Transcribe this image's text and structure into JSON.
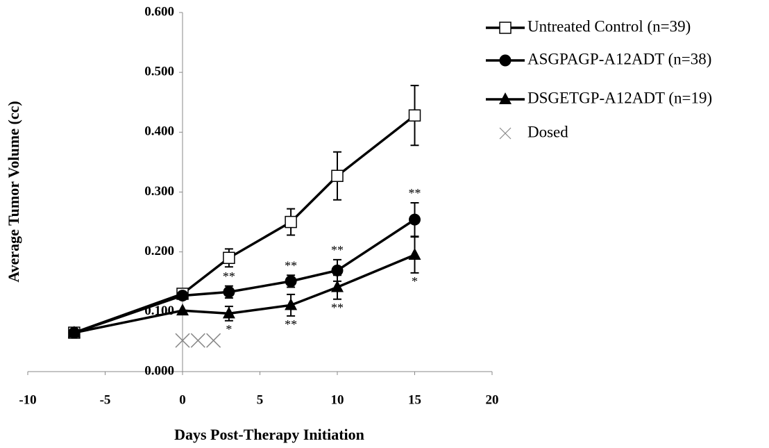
{
  "chart_data": {
    "type": "line",
    "xlabel": "Days Post-Therapy Initiation",
    "ylabel": "Average Tumor Volume (cc)",
    "xlim": [
      -10,
      20
    ],
    "xticks": [
      -10,
      -5,
      0,
      5,
      10,
      15,
      20
    ],
    "ylim": [
      0,
      0.6
    ],
    "yticks": [
      {
        "value": 0,
        "label": "0.000"
      },
      {
        "value": 0.1,
        "label": "0.100"
      },
      {
        "value": 0.2,
        "label": "0.200"
      },
      {
        "value": 0.3,
        "label": "0.300"
      },
      {
        "value": 0.4,
        "label": "0.400"
      },
      {
        "value": 0.5,
        "label": "0.500"
      },
      {
        "value": 0.6,
        "label": "0.600"
      }
    ],
    "series": [
      {
        "name": "Untreated Control (n=39)",
        "color": "#000000",
        "marker": "square-open",
        "x": [
          -7,
          0,
          3,
          7,
          10,
          15
        ],
        "values": [
          0.065,
          0.13,
          0.19,
          0.25,
          0.327,
          0.428
        ],
        "errors": [
          null,
          null,
          0.015,
          0.022,
          0.04,
          0.05
        ],
        "annotations": [
          null,
          null,
          null,
          null,
          null,
          null
        ]
      },
      {
        "name": "ASGPAGP-A12ADT (n=38)",
        "color": "#000000",
        "marker": "circle",
        "x": [
          -7,
          0,
          3,
          7,
          10,
          15
        ],
        "values": [
          0.065,
          0.127,
          0.133,
          0.151,
          0.169,
          0.254
        ],
        "errors": [
          null,
          null,
          0.01,
          0.01,
          0.018,
          0.028
        ],
        "annotations": [
          null,
          null,
          "**",
          "**",
          "**",
          "**"
        ]
      },
      {
        "name": "DSGETGP-A12ADT (n=19)",
        "color": "#000000",
        "marker": "triangle",
        "x": [
          -7,
          0,
          3,
          7,
          10,
          15
        ],
        "values": [
          0.065,
          0.102,
          0.097,
          0.111,
          0.141,
          0.195
        ],
        "errors": [
          null,
          null,
          0.012,
          0.018,
          0.02,
          0.03
        ],
        "annotations": [
          null,
          null,
          "*",
          "**",
          "**",
          "*"
        ]
      },
      {
        "name": "Dosed",
        "color": "#888888",
        "marker": "x",
        "x": [
          0,
          1,
          2
        ],
        "values": [
          0.052,
          0.052,
          0.052
        ],
        "errors": [
          null,
          null,
          null
        ],
        "annotations": [
          null,
          null,
          null
        ]
      }
    ]
  }
}
